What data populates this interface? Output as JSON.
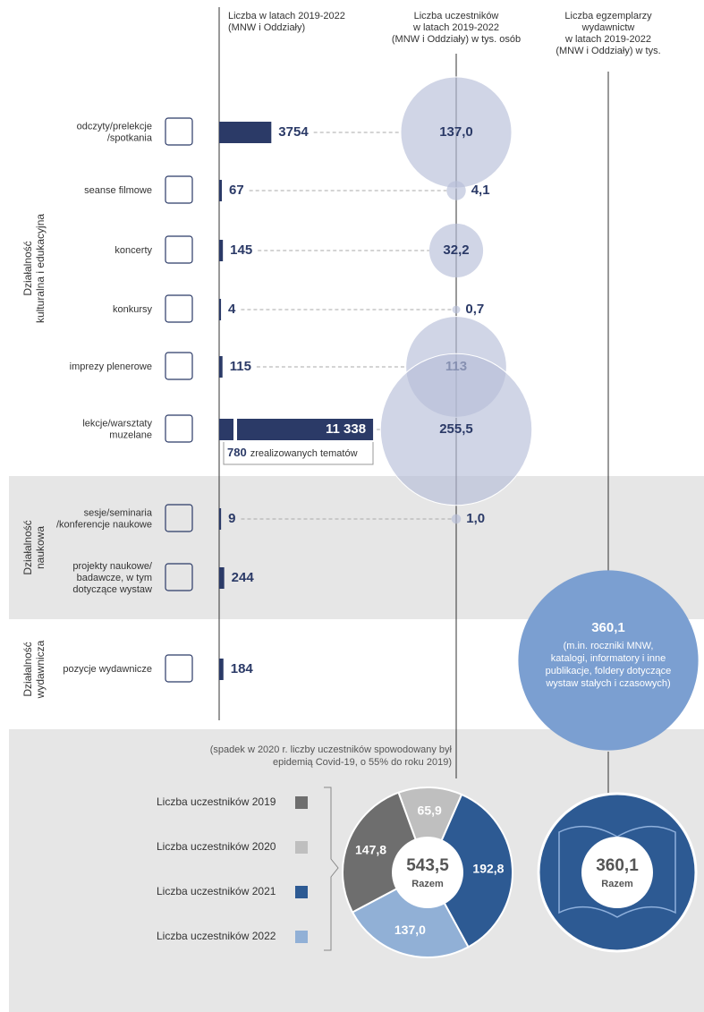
{
  "headers": [
    [
      "Liczba w latach 2019-2022",
      "(MNW i Oddziały)"
    ],
    [
      "Liczba uczestników",
      "w latach 2019-2022",
      "(MNW i Oddziały) w tys. osób"
    ],
    [
      "Liczba egzemplarzy",
      "wydawnictw",
      "w latach 2019-2022",
      "(MNW i Oddziały) w tys."
    ]
  ],
  "sections": [
    {
      "label": [
        "Działalność",
        "kulturalna i edukacyjna"
      ],
      "rows": [
        {
          "label": [
            "odczyty/prelekcje",
            "/spotkania"
          ],
          "count": 3754,
          "participants": {
            "value": 137.0,
            "label": "137,0"
          }
        },
        {
          "label": [
            "seanse filmowe"
          ],
          "count": 67,
          "participants": {
            "value": 4.1,
            "label": "4,1"
          }
        },
        {
          "label": [
            "koncerty"
          ],
          "count": 145,
          "participants": {
            "value": 32.2,
            "label": "32,2"
          }
        },
        {
          "label": [
            "konkursy"
          ],
          "count": 4,
          "participants": {
            "value": 0.7,
            "label": "0,7"
          }
        },
        {
          "label": [
            "imprezy plenerowe"
          ],
          "count": 115,
          "participants": 113
        },
        {
          "label": [
            "lekcje/warsztaty",
            "muzelane"
          ],
          "count": {
            "value": 11338,
            "label": "11 338"
          },
          "participants": {
            "value": 255.5,
            "label": "255,5"
          },
          "note": {
            "value": 780,
            "text": "zrealizowanych tematów"
          }
        }
      ]
    },
    {
      "label": [
        "Działalność",
        "naukowa"
      ],
      "rows": [
        {
          "label": [
            "sesje/seminaria",
            "/konferencje naukowe"
          ],
          "count": 9,
          "participants": {
            "value": 1.0,
            "label": "1,0"
          }
        },
        {
          "label": [
            "projekty naukowe/",
            "badawcze, w tym",
            "dotyczące wystaw"
          ],
          "count": 244
        }
      ]
    },
    {
      "label": [
        "Działalność",
        "wydawnicza"
      ],
      "rows": [
        {
          "label": [
            "pozycje wydawnicze"
          ],
          "count": 184
        }
      ]
    }
  ],
  "publications": {
    "value": 360.1,
    "label": "360,1",
    "description": [
      "(m.in. roczniki MNW,",
      "katalogi, informatory i inne",
      "publikacje, foldery dotyczące",
      "wystaw stałych i czasowych)"
    ]
  },
  "summary": {
    "note": [
      "(spadek w 2020 r. liczby uczestników spowodowany był",
      "epidemią Covid-19, o 55% do roku 2019)"
    ],
    "type": "pie",
    "series": [
      {
        "name": "Liczba uczestników 2019",
        "color": "#6e6e6e",
        "value": 147.8,
        "value_label": "147,8"
      },
      {
        "name": "Liczba uczestników 2020",
        "color": "#bfbfbf",
        "value": 65.9,
        "value_label": "65,9"
      },
      {
        "name": "Liczba uczestników 2021",
        "color": "#2d5a93",
        "value": 192.8,
        "value_label": "192,8"
      },
      {
        "name": "Liczba uczestników 2022",
        "color": "#91b0d6",
        "value": 137.0,
        "value_label": "137,0"
      }
    ],
    "total": {
      "value": 543.5,
      "label": "543,5",
      "caption": "Razem"
    },
    "publications_total": {
      "value": 360.1,
      "label": "360,1",
      "caption": "Razem"
    }
  }
}
